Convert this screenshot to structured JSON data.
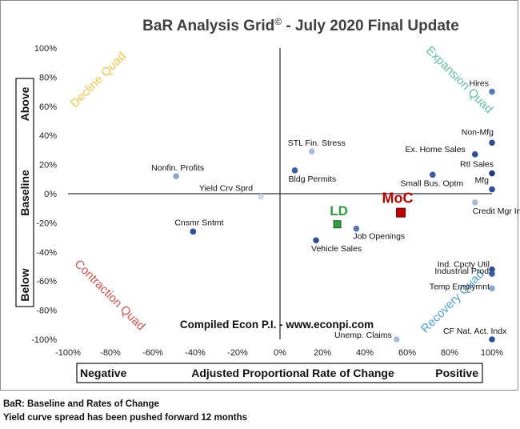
{
  "chart_data": {
    "type": "scatter",
    "title": "BaR Analysis Grid",
    "title_mark": "©",
    "title_suffix": " - July 2020 Final Update",
    "xlim": [
      -100,
      100
    ],
    "ylim": [
      -100,
      100
    ],
    "x_ticks": [
      "-100%",
      "-80%",
      "-60%",
      "-40%",
      "-20%",
      "0%",
      "20%",
      "40%",
      "60%",
      "80%",
      "100%"
    ],
    "y_ticks": [
      "100%",
      "80%",
      "60%",
      "40%",
      "20%",
      "0%",
      "-20%",
      "-40%",
      "-60%",
      "-80%",
      "-100%"
    ],
    "x_axis_box": {
      "left": "Negative",
      "center": "Adjusted Proportional Rate of Change",
      "right": "Positive"
    },
    "y_axis_box": {
      "top": "Above",
      "middle": "Baseline",
      "bottom": "Below"
    },
    "quadrants": [
      {
        "name": "Decline Quad",
        "color": "#f5c542"
      },
      {
        "name": "Expansion Quad",
        "color": "#5dc49a"
      },
      {
        "name": "Contraction Quad",
        "color": "#d9534f"
      },
      {
        "name": "Recovery Quad",
        "color": "#4fa3d9"
      }
    ],
    "points": [
      {
        "label": "Hires",
        "x": 100,
        "y": 70,
        "color": "#5577bb"
      },
      {
        "label": "Non-Mfg",
        "x": 100,
        "y": 35,
        "color": "#2e4d9a"
      },
      {
        "label": "Ex. Home Sales",
        "x": 92,
        "y": 27,
        "color": "#2e4d9a"
      },
      {
        "label": "Rtl Sales",
        "x": 100,
        "y": 14,
        "color": "#243a80"
      },
      {
        "label": "Mfg",
        "x": 100,
        "y": 3,
        "color": "#2e4d9a"
      },
      {
        "label": "Small Bus. Optm",
        "x": 72,
        "y": 13,
        "color": "#3a5fa8"
      },
      {
        "label": "Credit Mgr Indx",
        "x": 92,
        "y": -6,
        "color": "#a8bcd8"
      },
      {
        "label": "STL Fin. Stress",
        "x": 15,
        "y": 29,
        "color": "#a8bcd8"
      },
      {
        "label": "Bldg Permits",
        "x": 7,
        "y": 16,
        "color": "#3a5fa8"
      },
      {
        "label": "Nonfin. Profits",
        "x": -49,
        "y": 12,
        "color": "#8ea6cc"
      },
      {
        "label": "Yield Crv Sprd",
        "x": -9,
        "y": -2,
        "color": "#cfd9ea"
      },
      {
        "label": "Cnsmr Sntmt",
        "x": -41,
        "y": -26,
        "color": "#2e4d9a"
      },
      {
        "label": "Job Openings",
        "x": 36,
        "y": -24,
        "color": "#5577bb"
      },
      {
        "label": "Vehicle Sales",
        "x": 17,
        "y": -32,
        "color": "#2e4d9a"
      },
      {
        "label": "Ind. Cpcty Util",
        "x": 100,
        "y": -52,
        "color": "#2e4d9a"
      },
      {
        "label": "Industrial Prod.",
        "x": 100,
        "y": -55,
        "color": "#3a5fa8"
      },
      {
        "label": "Temp Emplymnt",
        "x": 100,
        "y": -65,
        "color": "#8ea6cc"
      },
      {
        "label": "CF Nat. Act. Indx",
        "x": 100,
        "y": -100,
        "color": "#2e4d9a"
      },
      {
        "label": "Unemp. Claims",
        "x": 55,
        "y": -100,
        "color": "#a8bcd8"
      }
    ],
    "highlights": [
      {
        "label": "LD",
        "x": 27,
        "y": -21,
        "color": "#2e9e3e",
        "label_color": "#2e9e3e"
      },
      {
        "label": "MoC",
        "x": 57,
        "y": -13,
        "color": "#c00000",
        "label_color": "#c00000"
      }
    ],
    "credit": "Compiled Econ P.I. - www.econpi.com"
  },
  "footnotes": [
    "BaR: Baseline and Rates of Change",
    "Yield curve spread has been pushed forward 12 months"
  ]
}
